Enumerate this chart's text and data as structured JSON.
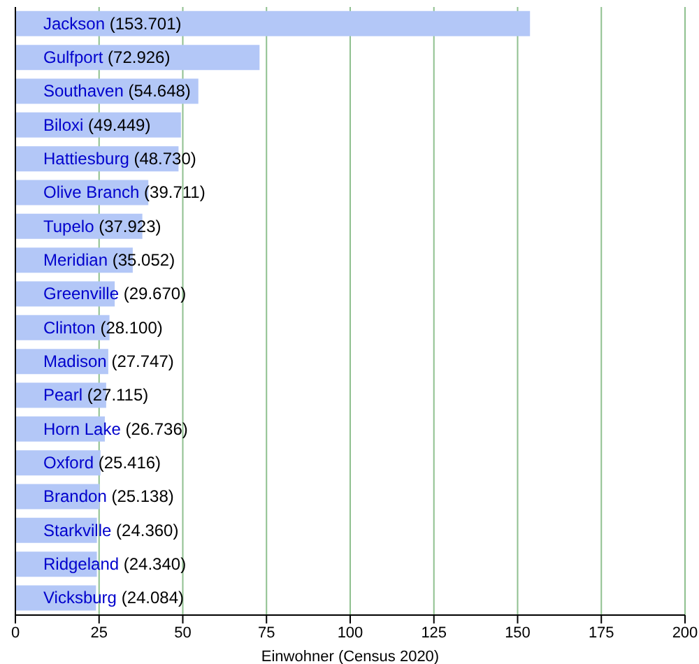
{
  "chart_data": {
    "type": "bar",
    "orientation": "horizontal",
    "xlabel": "Einwohner (Census 2020)",
    "categories": [
      "Jackson",
      "Gulfport",
      "Southaven",
      "Biloxi",
      "Hattiesburg",
      "Olive Branch",
      "Tupelo",
      "Meridian",
      "Greenville",
      "Clinton",
      "Madison",
      "Pearl",
      "Horn Lake",
      "Oxford",
      "Brandon",
      "Starkville",
      "Ridgeland",
      "Vicksburg"
    ],
    "values": [
      153.701,
      72.926,
      54.648,
      49.449,
      48.73,
      39.711,
      37.923,
      35.052,
      29.67,
      28.1,
      27.747,
      27.115,
      26.736,
      25.416,
      25.138,
      24.36,
      24.34,
      24.084
    ],
    "value_labels": [
      "(153.701)",
      "(72.926)",
      "(54.648)",
      "(49.449)",
      "(48.730)",
      "(39.711)",
      "(37.923)",
      "(35.052)",
      "(29.670)",
      "(28.100)",
      "(27.747)",
      "(27.115)",
      "(26.736)",
      "(25.416)",
      "(25.138)",
      "(24.360)",
      "(24.340)",
      "(24.084)"
    ],
    "color": "#b3c7f7",
    "xlim": [
      0,
      200
    ],
    "xticks": [
      0,
      25,
      50,
      75,
      100,
      125,
      150,
      175,
      200
    ],
    "grid": "x",
    "legend": false
  }
}
